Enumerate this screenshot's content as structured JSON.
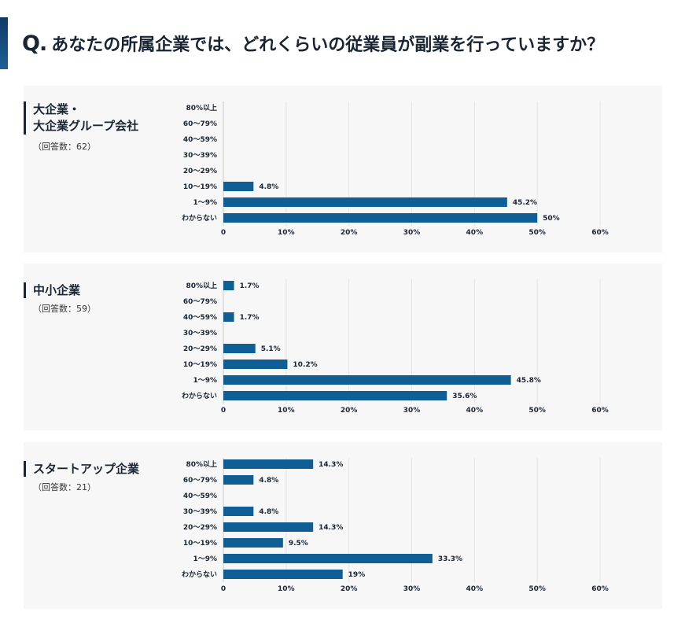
{
  "question": {
    "prefix": "Q.",
    "text": "あなたの所属企業では、どれくらいの従業員が副業を行っていますか？"
  },
  "panels": [
    {
      "name_lines": [
        "大企業・",
        "大企業グループ会社"
      ],
      "count": "（回答数：62）"
    },
    {
      "name_lines": [
        "中小企業"
      ],
      "count": "（回答数：59）"
    },
    {
      "name_lines": [
        "スタートアップ企業"
      ],
      "count": "（回答数：21）"
    }
  ],
  "chart_data": [
    {
      "type": "bar",
      "orientation": "horizontal",
      "categories": [
        "80%以上",
        "60〜79%",
        "40〜59%",
        "30〜39%",
        "20〜29%",
        "10〜19%",
        "1〜9%",
        "わからない"
      ],
      "values": [
        null,
        null,
        null,
        null,
        null,
        4.8,
        45.2,
        50
      ],
      "value_labels": [
        "",
        "",
        "",
        "",
        "",
        "4.8%",
        "45.2%",
        "50%"
      ],
      "xticks": [
        "0",
        "10%",
        "20%",
        "30%",
        "40%",
        "50%",
        "60%"
      ],
      "xlim": [
        0,
        60
      ],
      "grid": true,
      "color": "#0f5e96"
    },
    {
      "type": "bar",
      "orientation": "horizontal",
      "categories": [
        "80%以上",
        "60〜79%",
        "40〜59%",
        "30〜39%",
        "20〜29%",
        "10〜19%",
        "1〜9%",
        "わからない"
      ],
      "values": [
        1.7,
        null,
        1.7,
        null,
        5.1,
        10.2,
        45.8,
        35.6
      ],
      "value_labels": [
        "1.7%",
        "",
        "1.7%",
        "",
        "5.1%",
        "10.2%",
        "45.8%",
        "35.6%"
      ],
      "xticks": [
        "0",
        "10%",
        "20%",
        "30%",
        "40%",
        "50%",
        "60%"
      ],
      "xlim": [
        0,
        60
      ],
      "grid": true,
      "color": "#0f5e96"
    },
    {
      "type": "bar",
      "orientation": "horizontal",
      "categories": [
        "80%以上",
        "60〜79%",
        "40〜59%",
        "30〜39%",
        "20〜29%",
        "10〜19%",
        "1〜9%",
        "わからない"
      ],
      "values": [
        14.3,
        4.8,
        null,
        4.8,
        14.3,
        9.5,
        33.3,
        19
      ],
      "value_labels": [
        "14.3%",
        "4.8%",
        "",
        "4.8%",
        "14.3%",
        "9.5%",
        "33.3%",
        "19%"
      ],
      "xticks": [
        "0",
        "10%",
        "20%",
        "30%",
        "40%",
        "50%",
        "60%"
      ],
      "xlim": [
        0,
        60
      ],
      "grid": true,
      "color": "#0f5e96"
    }
  ]
}
